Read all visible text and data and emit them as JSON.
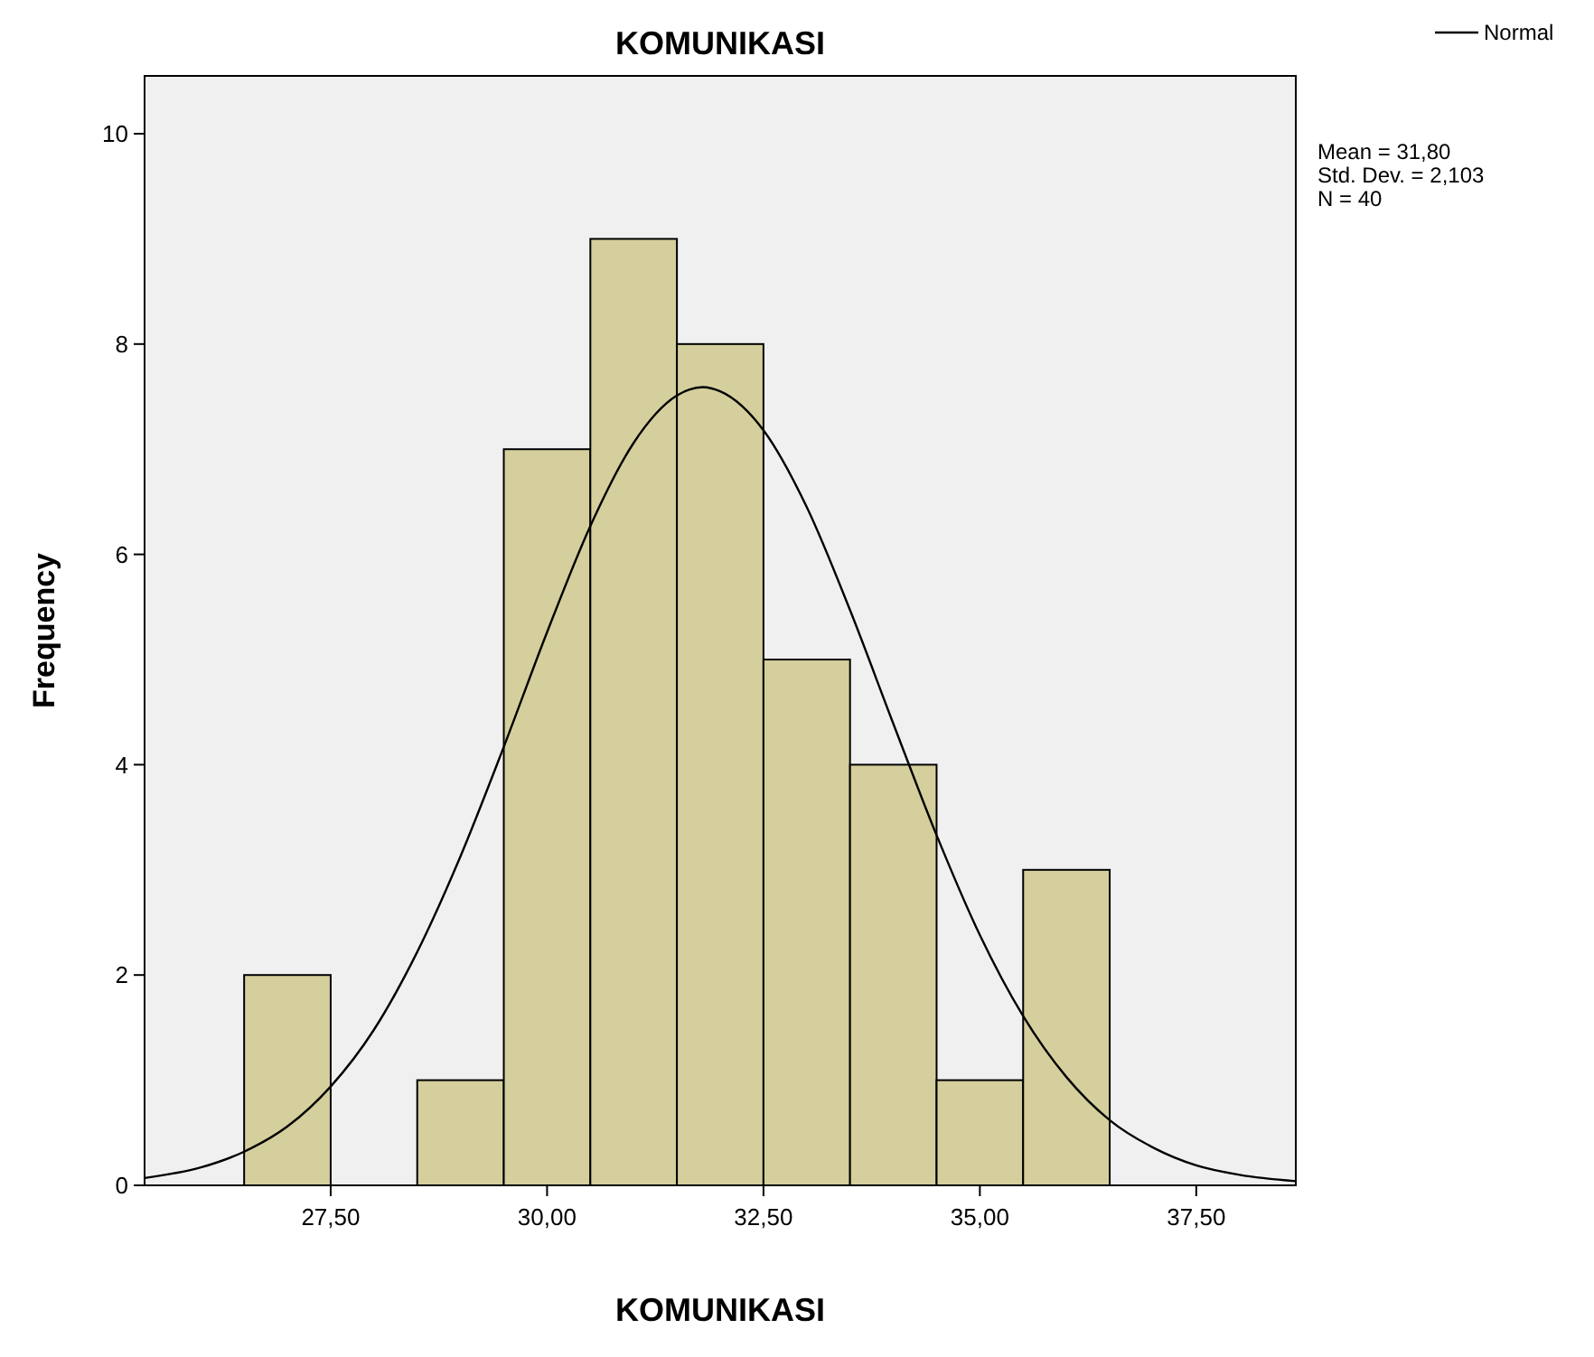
{
  "chart_data": {
    "type": "histogram",
    "title": "KOMUNIKASI",
    "xlabel": "KOMUNIKASI",
    "ylabel": "Frequency",
    "bins": [
      26.5,
      27.5,
      28.5,
      29.5,
      30.5,
      31.5,
      32.5,
      33.5,
      34.5,
      35.5,
      36.5
    ],
    "series": [
      {
        "color": "#d4cf9c",
        "values": [
          2,
          0,
          1,
          7,
          9,
          8,
          5,
          4,
          1,
          3
        ]
      },
      {
        "type": "line",
        "name": "Normal",
        "color": "#000000",
        "x": [
          25.35,
          26,
          26.5,
          27,
          27.5,
          28,
          28.5,
          29,
          29.5,
          30,
          30.5,
          31,
          31.5,
          31.8,
          32,
          32.5,
          33,
          33.5,
          34,
          34.5,
          35,
          35.5,
          36,
          36.5,
          37,
          37.5,
          38,
          38.65
        ],
        "values": [
          0.07,
          0.17,
          0.32,
          0.56,
          0.94,
          1.48,
          2.22,
          3.13,
          4.17,
          5.26,
          6.27,
          7.06,
          7.51,
          7.59,
          7.55,
          7.18,
          6.45,
          5.47,
          4.39,
          3.33,
          2.38,
          1.61,
          1.03,
          0.62,
          0.36,
          0.19,
          0.1,
          0.04
        ]
      }
    ],
    "xlim": [
      25.35,
      38.65
    ],
    "xticks": [
      {
        "value": 27.5,
        "label": "27,50"
      },
      {
        "value": 30,
        "label": "30,00"
      },
      {
        "value": 32.5,
        "label": "32,50"
      },
      {
        "value": 35,
        "label": "35,00"
      },
      {
        "value": 37.5,
        "label": "37,50"
      }
    ],
    "ylim": [
      0,
      10.55
    ],
    "yticks": [
      0,
      2,
      4,
      6,
      8,
      10
    ],
    "grid": false,
    "legend": "top right",
    "annotations": [
      "Mean = 31,80",
      "Std. Dev. = 2,103",
      "N = 40"
    ]
  }
}
